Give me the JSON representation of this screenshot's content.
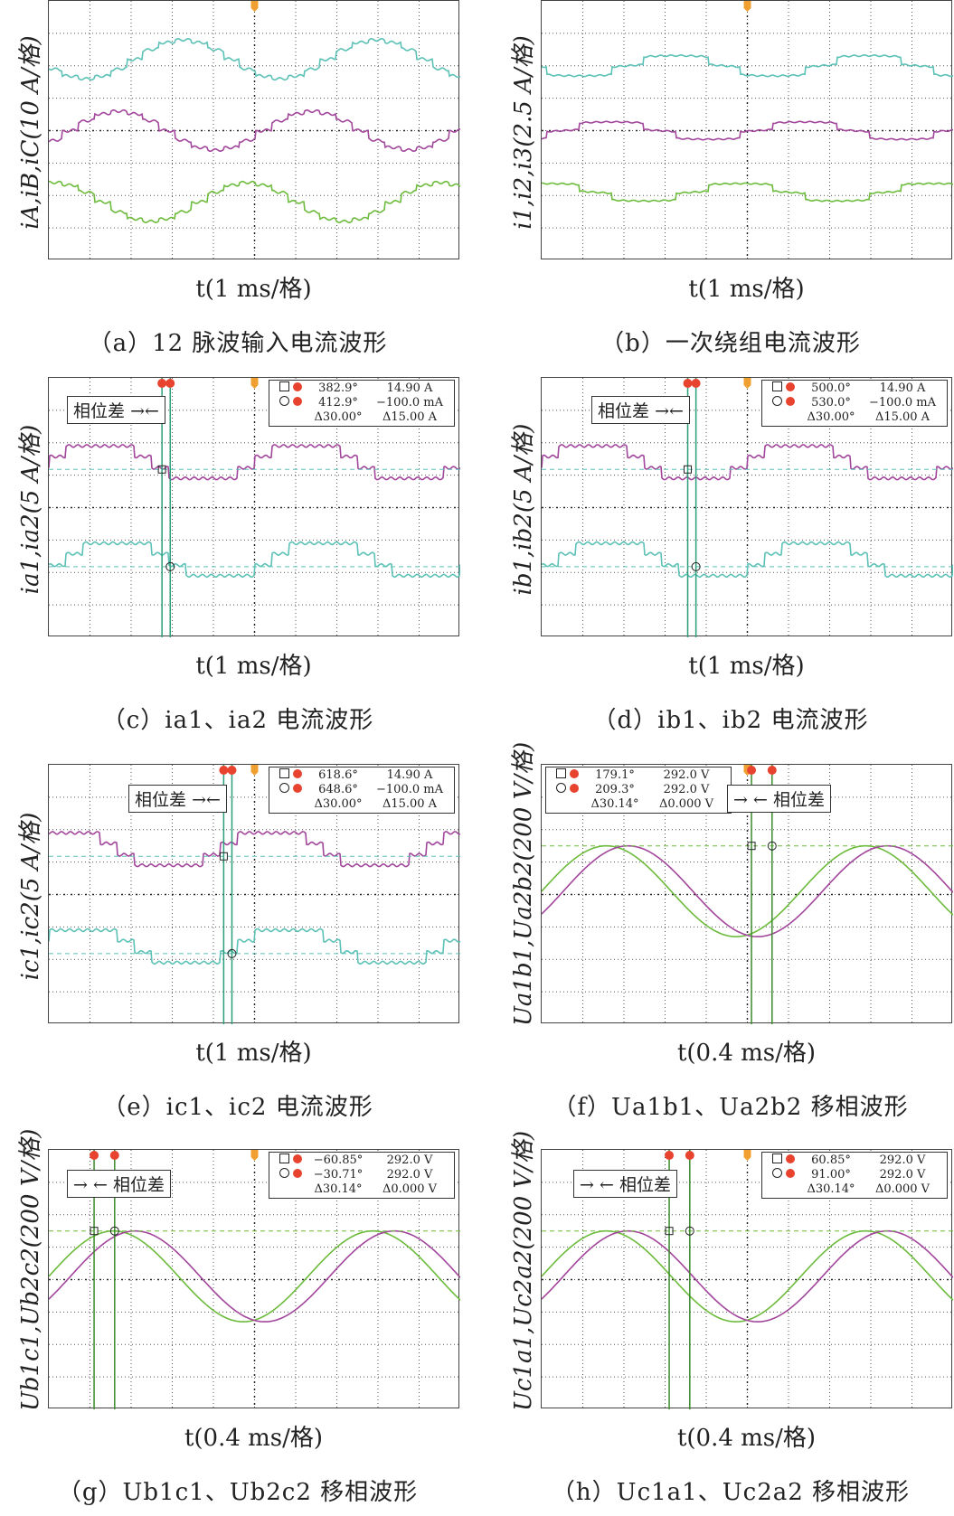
{
  "colors": {
    "cyan": "#5cc1b6",
    "magenta": "#a2469c",
    "green": "#6dbb3c",
    "grid": "#555555",
    "cursor": "#2a9d7a",
    "marker": "#e8432e",
    "trigger": "#f0a030"
  },
  "phase_label": "相位差",
  "chart_data": [
    {
      "id": "a",
      "type": "line",
      "ylabel": "iA,iB,iC(10 A/格)",
      "xlabel": "t(1 ms/格)",
      "caption": "（a）12 脉波输入电流波形",
      "grid": true,
      "divisions": [
        10,
        8
      ],
      "series": [
        {
          "color": "cyan",
          "shape": "12-pulse stepped sine",
          "offset_div": 1.8,
          "amplitude_div": 0.6,
          "period_div": 4.7,
          "phase_deg": 200
        },
        {
          "color": "magenta",
          "shape": "12-pulse stepped sine",
          "offset_div": 4.0,
          "amplitude_div": 0.6,
          "period_div": 4.7,
          "phase_deg": 320
        },
        {
          "color": "green",
          "shape": "12-pulse stepped sine",
          "offset_div": 6.2,
          "amplitude_div": 0.6,
          "period_div": 4.7,
          "phase_deg": 80
        }
      ]
    },
    {
      "id": "b",
      "type": "line",
      "ylabel": "i1,i2,i3(2.5 A/格)",
      "xlabel": "t(1 ms/格)",
      "caption": "（b）一次绕组电流波形",
      "grid": true,
      "divisions": [
        10,
        8
      ],
      "series": [
        {
          "color": "cyan",
          "shape": "stepped sine",
          "offset_div": 2.0,
          "amplitude_div": 0.35,
          "period_div": 4.7,
          "phase_deg": 200
        },
        {
          "color": "magenta",
          "shape": "stepped sine",
          "offset_div": 4.0,
          "amplitude_div": 0.3,
          "period_div": 4.7,
          "phase_deg": 320
        },
        {
          "color": "green",
          "shape": "stepped sine",
          "offset_div": 5.9,
          "amplitude_div": 0.3,
          "period_div": 4.7,
          "phase_deg": 80
        }
      ]
    },
    {
      "id": "c",
      "type": "line",
      "ylabel": "ia1,ia2(5 A/格)",
      "xlabel": "t(1 ms/格)",
      "caption": "（c）ia1、ia2 电流波形",
      "grid": true,
      "divisions": [
        10,
        8
      ],
      "series": [
        {
          "color": "magenta",
          "shape": "stepped square",
          "offset_div": 2.6,
          "amplitude_div": 0.5,
          "period_div": 5.0,
          "phase_deg": 0
        },
        {
          "color": "cyan",
          "shape": "stepped square",
          "offset_div": 5.6,
          "amplitude_div": 0.5,
          "period_div": 5.0,
          "phase_deg": -30
        }
      ],
      "readout": {
        "a_x": "382.9°",
        "a_y": "14.90 A",
        "b_x": "412.9°",
        "b_y": "−100.0 mA",
        "dx": "Δ30.00°",
        "dy": "Δ15.00 A"
      }
    },
    {
      "id": "d",
      "type": "line",
      "ylabel": "ib1,ib2(5 A/格)",
      "xlabel": "t(1 ms/格)",
      "caption": "（d）ib1、ib2 电流波形",
      "grid": true,
      "divisions": [
        10,
        8
      ],
      "series": [
        {
          "color": "magenta",
          "shape": "stepped square",
          "offset_div": 2.6,
          "amplitude_div": 0.5,
          "period_div": 5.0,
          "phase_deg": 0
        },
        {
          "color": "cyan",
          "shape": "stepped square",
          "offset_div": 5.6,
          "amplitude_div": 0.5,
          "period_div": 5.0,
          "phase_deg": -30
        }
      ],
      "readout": {
        "a_x": "500.0°",
        "a_y": "14.90 A",
        "b_x": "530.0°",
        "b_y": "−100.0 mA",
        "dx": "Δ30.00°",
        "dy": "Δ15.00 A"
      }
    },
    {
      "id": "e",
      "type": "line",
      "ylabel": "ic1,ic2(5 A/格)",
      "xlabel": "t(1 ms/格)",
      "caption": "（e）ic1、ic2 电流波形",
      "grid": true,
      "divisions": [
        10,
        8
      ],
      "series": [
        {
          "color": "magenta",
          "shape": "stepped square",
          "offset_div": 2.6,
          "amplitude_div": 0.5,
          "period_div": 5.0,
          "phase_deg": 60
        },
        {
          "color": "cyan",
          "shape": "stepped square",
          "offset_div": 5.6,
          "amplitude_div": 0.5,
          "period_div": 5.0,
          "phase_deg": 30
        }
      ],
      "readout": {
        "a_x": "618.6°",
        "a_y": "14.90 A",
        "b_x": "648.6°",
        "b_y": "−100.0 mA",
        "dx": "Δ30.00°",
        "dy": "Δ15.00 A"
      }
    },
    {
      "id": "f",
      "type": "line",
      "ylabel": "Ua1b1,Ua2b2(200 V/格)",
      "xlabel": "t(0.4 ms/格)",
      "caption": "（f）Ua1b1、Ua2b2 移相波形",
      "grid": true,
      "divisions": [
        10,
        8
      ],
      "series": [
        {
          "color": "green",
          "shape": "sine",
          "offset_div": 3.9,
          "amplitude_div": 1.4,
          "period_div": 6.3,
          "phase_deg": 0
        },
        {
          "color": "magenta",
          "shape": "sine",
          "offset_div": 3.9,
          "amplitude_div": 1.4,
          "period_div": 6.3,
          "phase_deg": -30
        }
      ],
      "readout": {
        "a_x": "179.1°",
        "a_y": "292.0 V",
        "b_x": "209.3°",
        "b_y": "292.0 V",
        "dx": "Δ30.14°",
        "dy": "Δ0.000 V"
      }
    },
    {
      "id": "g",
      "type": "line",
      "ylabel": "Ub1c1,Ub2c2(200 V/格)",
      "xlabel": "t(0.4 ms/格)",
      "caption": "（g）Ub1c1、Ub2c2 移相波形",
      "grid": true,
      "divisions": [
        10,
        8
      ],
      "series": [
        {
          "color": "green",
          "shape": "sine",
          "offset_div": 3.9,
          "amplitude_div": 1.4,
          "period_div": 6.3,
          "phase_deg": 0
        },
        {
          "color": "magenta",
          "shape": "sine",
          "offset_div": 3.9,
          "amplitude_div": 1.4,
          "period_div": 6.3,
          "phase_deg": -30
        }
      ],
      "readout": {
        "a_x": "−60.85°",
        "a_y": "292.0 V",
        "b_x": "−30.71°",
        "b_y": "292.0 V",
        "dx": "Δ30.14°",
        "dy": "Δ0.000 V"
      }
    },
    {
      "id": "h",
      "type": "line",
      "ylabel": "Uc1a1,Uc2a2(200 V/格)",
      "xlabel": "t(0.4 ms/格)",
      "caption": "（h）Uc1a1、Uc2a2 移相波形",
      "grid": true,
      "divisions": [
        10,
        8
      ],
      "series": [
        {
          "color": "green",
          "shape": "sine",
          "offset_div": 3.9,
          "amplitude_div": 1.4,
          "period_div": 6.3,
          "phase_deg": 0
        },
        {
          "color": "magenta",
          "shape": "sine",
          "offset_div": 3.9,
          "amplitude_div": 1.4,
          "period_div": 6.3,
          "phase_deg": -30
        }
      ],
      "readout": {
        "a_x": "60.85°",
        "a_y": "292.0 V",
        "b_x": "91.00°",
        "b_y": "292.0 V",
        "dx": "Δ30.14°",
        "dy": "Δ0.000 V"
      }
    }
  ]
}
